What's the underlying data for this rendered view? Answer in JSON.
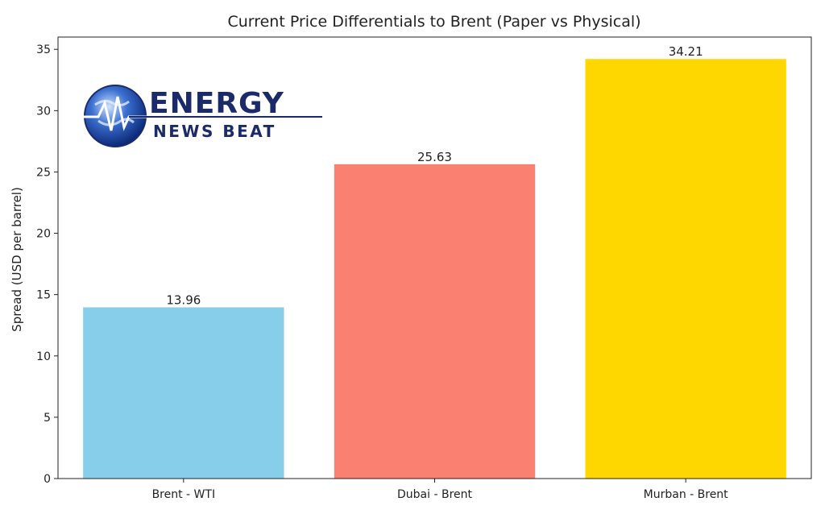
{
  "chart_data": {
    "type": "bar",
    "title": "Current Price Differentials to Brent (Paper vs Physical)",
    "xlabel": "",
    "ylabel": "Spread (USD per barrel)",
    "categories": [
      "Brent - WTI",
      "Dubai - Brent",
      "Murban - Brent"
    ],
    "values": [
      13.96,
      25.63,
      34.21
    ],
    "value_labels": [
      "13.96",
      "25.63",
      "34.21"
    ],
    "colors": [
      "#87ceeb",
      "#fa8072",
      "#ffd700"
    ],
    "ylim": [
      0,
      36
    ],
    "yticks": [
      0,
      5,
      10,
      15,
      20,
      25,
      30,
      35
    ],
    "grid": false,
    "legend": "none"
  },
  "watermark": {
    "line1": "ENERGY",
    "line2": "NEWS BEAT",
    "color": "#1b2a6b"
  }
}
